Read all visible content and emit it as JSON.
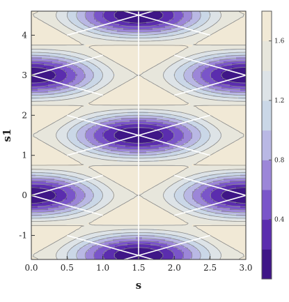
{
  "chart_data": {
    "type": "contour",
    "title": "",
    "xlabel": "s",
    "ylabel": "s1",
    "xlim": [
      0,
      3
    ],
    "ylim": [
      -1.6,
      4.6
    ],
    "x_ticks": [
      "0.0",
      "0.5",
      "1.0",
      "1.5",
      "2.0",
      "2.5",
      "3.0"
    ],
    "y_ticks": [
      "-1",
      "0",
      "1",
      "2",
      "3",
      "4"
    ],
    "field": {
      "description_of_function": "hexagonal lattice; minima (dark purple) at lattice points, maxima (beige) at triangle centers",
      "lattice_points": [
        [
          0,
          0
        ],
        [
          0,
          3
        ],
        [
          1.5,
          -1.5
        ],
        [
          1.5,
          1.5
        ],
        [
          1.5,
          4.5
        ],
        [
          3,
          0
        ],
        [
          3,
          3
        ]
      ],
      "maxima_points": [
        [
          0.5,
          1.5
        ],
        [
          1.0,
          3.0
        ],
        [
          1.0,
          0.0
        ],
        [
          2.0,
          3.0
        ],
        [
          2.0,
          0.0
        ],
        [
          2.5,
          1.5
        ],
        [
          0.5,
          -1.5
        ],
        [
          2.5,
          -1.5
        ],
        [
          0.5,
          4.5
        ],
        [
          2.5,
          4.5
        ]
      ]
    },
    "contour_levels": [
      0.2,
      0.4,
      0.6,
      0.8,
      1.0,
      1.2,
      1.4,
      1.6
    ],
    "colorbar": {
      "range": [
        0,
        1.8
      ],
      "tick_labels": [
        "0.4",
        "0.8",
        "1.2",
        "1.6"
      ],
      "tick_values": [
        0.4,
        0.8,
        1.2,
        1.6
      ],
      "colors": [
        "#3f1687",
        "#5b2dae",
        "#7a55c9",
        "#9c86d8",
        "#b9b8e4",
        "#cad7e7",
        "#dde3e7",
        "#e7e6dc",
        "#f1e9d6"
      ]
    },
    "white_lines": "true"
  }
}
